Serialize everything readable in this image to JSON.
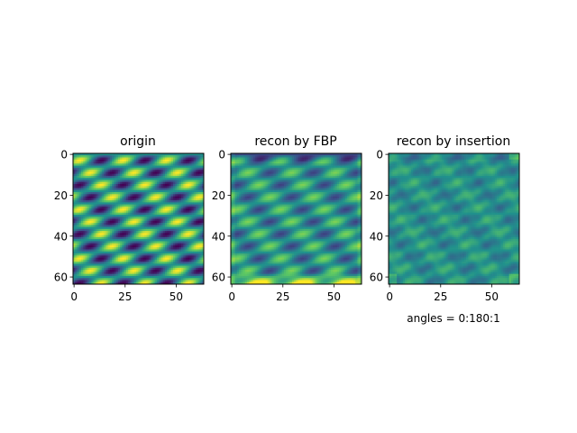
{
  "figure": {
    "background": "#ffffff",
    "colormap": "viridis",
    "colormap_stops": [
      "#440154",
      "#3b528b",
      "#21918c",
      "#5ec962",
      "#fde725"
    ]
  },
  "chart_data": [
    {
      "type": "heatmap",
      "title": "origin",
      "xlabel": "",
      "ylabel": "",
      "xlim": [
        -0.5,
        63.5
      ],
      "ylim": [
        63.5,
        -0.5
      ],
      "xticks": [
        0,
        25,
        50
      ],
      "yticks": [
        0,
        20,
        40,
        60
      ],
      "grid": false,
      "rows": 64,
      "cols": 64,
      "pattern": "periodic diagonal bands of yellow highs and dark-purple lows on a teal background; period about 21 in x and 12 in y",
      "value_range": [
        -1,
        1
      ],
      "mean_level": 0.0
    },
    {
      "type": "heatmap",
      "title": "recon by FBP",
      "xlabel": "",
      "ylabel": "",
      "xlim": [
        -0.5,
        63.5
      ],
      "ylim": [
        63.5,
        -0.5
      ],
      "xticks": [
        0,
        25,
        50
      ],
      "yticks": [
        0,
        20,
        40,
        60
      ],
      "grid": false,
      "rows": 64,
      "cols": 64,
      "pattern": "same periodic bands, lower contrast, dark band along top rows, bright yellow band along bottom rows",
      "value_range": [
        -1,
        1
      ],
      "mean_level": 0.0
    },
    {
      "type": "heatmap",
      "title": "recon by insertion",
      "xlabel": "angles = 0:180:1",
      "ylabel": "",
      "xlim": [
        -0.5,
        63.5
      ],
      "ylim": [
        63.5,
        -0.5
      ],
      "xticks": [
        0,
        25,
        50
      ],
      "yticks": [
        0,
        20,
        40,
        60
      ],
      "grid": false,
      "rows": 64,
      "cols": 64,
      "pattern": "faint periodic bands, mostly teal-green, slight brightening at corners",
      "value_range": [
        -1,
        1
      ],
      "mean_level": 0.0
    }
  ]
}
